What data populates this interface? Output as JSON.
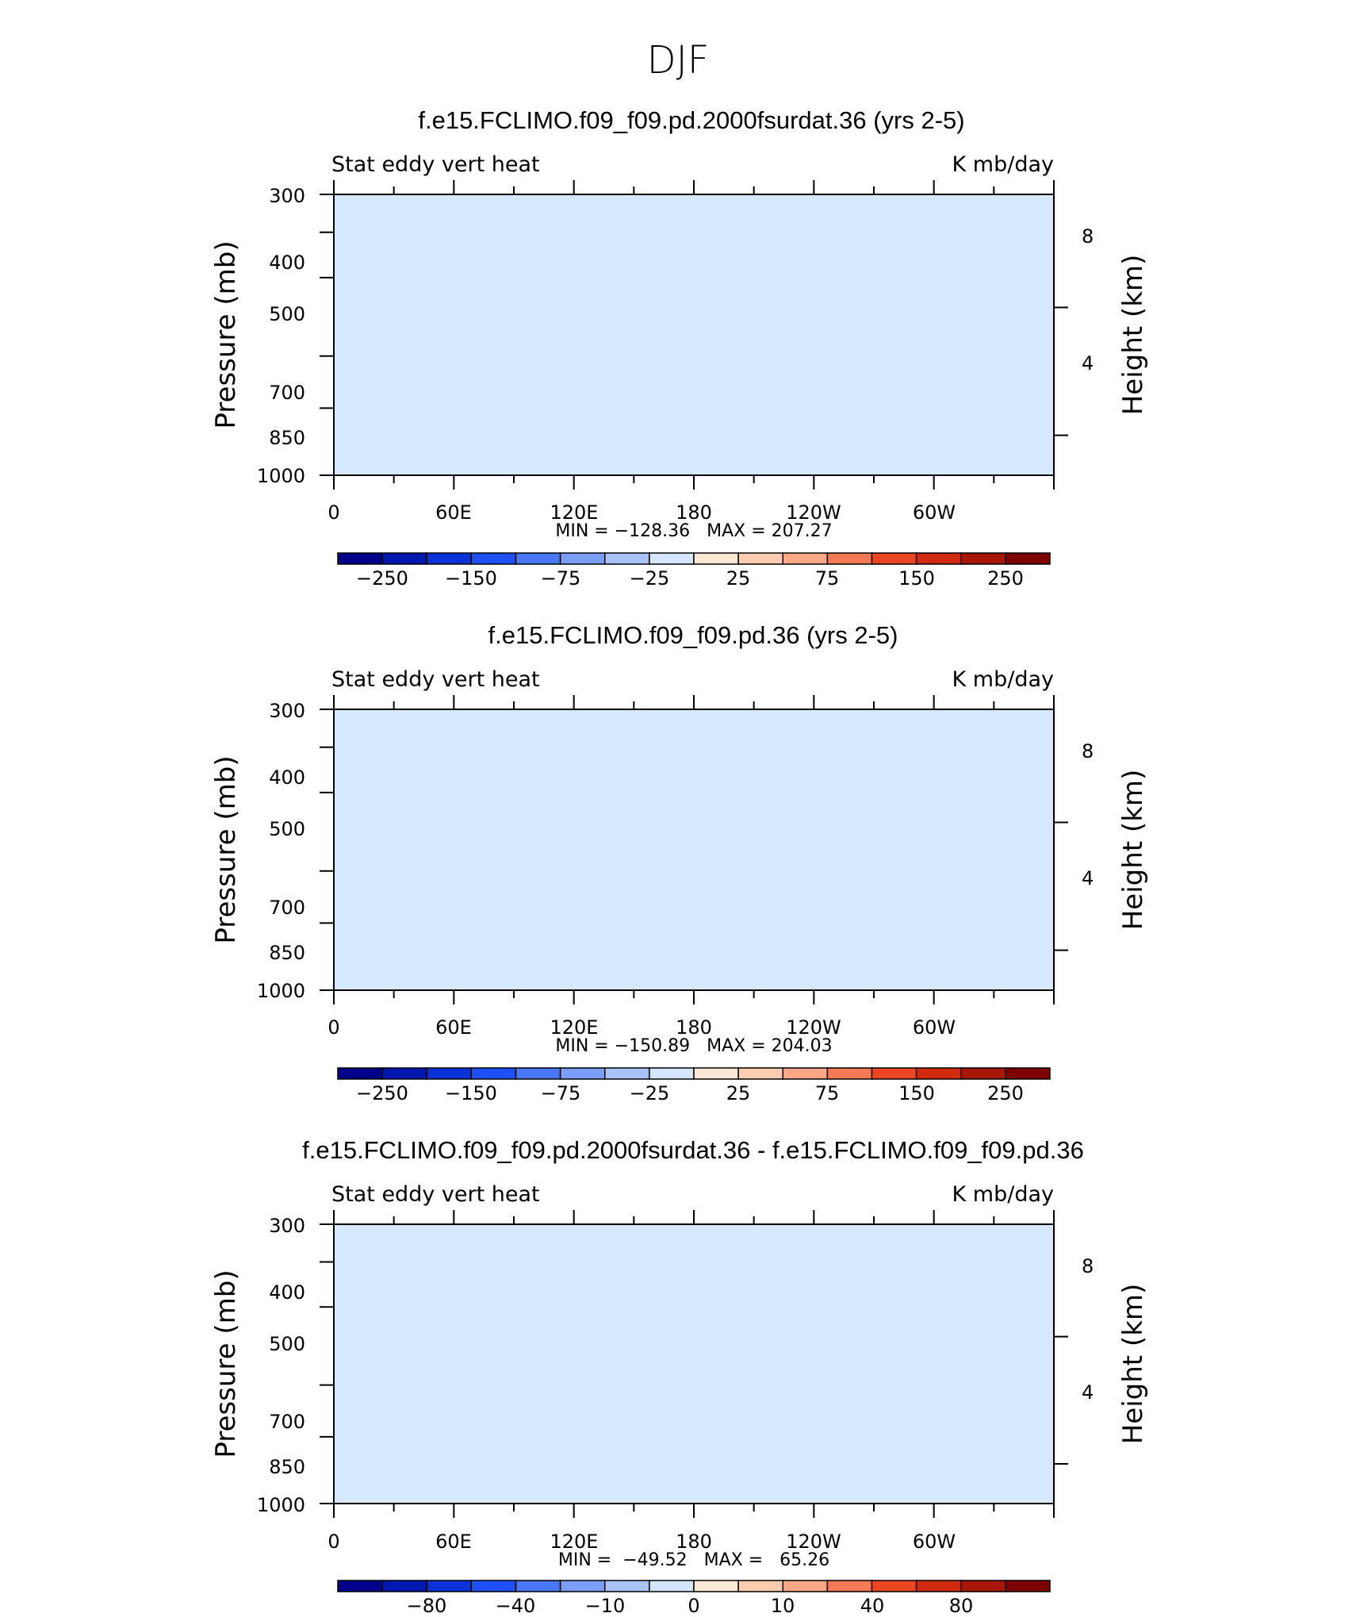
{
  "figure": {
    "title": "DJF"
  },
  "colors": {
    "abs": [
      "#00008b",
      "#0018b0",
      "#0a32d6",
      "#1e50ff",
      "#4a78f5",
      "#7a9ef7",
      "#a9c2fa",
      "#d3e6fd",
      "#fde8d5",
      "#fdcdb2",
      "#f9a886",
      "#f47a55",
      "#ea4722",
      "#d02a0f",
      "#a71708",
      "#7d0303"
    ],
    "diff": [
      "#00008b",
      "#0018b0",
      "#0a32d6",
      "#1e50ff",
      "#4a78f5",
      "#7a9ef7",
      "#a9c2fa",
      "#d3e6fd",
      "#fde8d5",
      "#fdcdb2",
      "#f9a886",
      "#f47a55",
      "#ea4722",
      "#d02a0f",
      "#a71708",
      "#7d0303"
    ],
    "topo": "#000000"
  },
  "chart_data": [
    {
      "type": "heatmap",
      "title": "f.e15.FCLIMO.f09_f09.pd.2000fsurdat.36 (yrs 2-5)",
      "left_label": "Stat eddy vert heat",
      "right_label": "K mb/day",
      "ylabel": "Pressure (mb)",
      "y2label": "Height (km)",
      "y_ticks": [
        "300",
        "400",
        "500",
        "700",
        "850",
        "1000"
      ],
      "y2_ticks": [
        "8",
        "4"
      ],
      "x_ticks": [
        "0",
        "60E",
        "120E",
        "180",
        "120W",
        "60W"
      ],
      "xlim": [
        0,
        360
      ],
      "ylim": [
        1000,
        300
      ],
      "stats": "MIN = −128.36   MAX = 207.27",
      "colorbar": {
        "labels": [
          "−250",
          "−150",
          "−75",
          "−25",
          "25",
          "75",
          "150",
          "250"
        ],
        "palette": "abs"
      }
    },
    {
      "type": "heatmap",
      "title": "f.e15.FCLIMO.f09_f09.pd.36 (yrs 2-5)",
      "left_label": "Stat eddy vert heat",
      "right_label": "K mb/day",
      "ylabel": "Pressure (mb)",
      "y2label": "Height (km)",
      "y_ticks": [
        "300",
        "400",
        "500",
        "700",
        "850",
        "1000"
      ],
      "y2_ticks": [
        "8",
        "4"
      ],
      "x_ticks": [
        "0",
        "60E",
        "120E",
        "180",
        "120W",
        "60W"
      ],
      "xlim": [
        0,
        360
      ],
      "ylim": [
        1000,
        300
      ],
      "stats": "MIN = −150.89   MAX = 204.03",
      "colorbar": {
        "labels": [
          "−250",
          "−150",
          "−75",
          "−25",
          "25",
          "75",
          "150",
          "250"
        ],
        "palette": "abs"
      }
    },
    {
      "type": "heatmap",
      "title": "f.e15.FCLIMO.f09_f09.pd.2000fsurdat.36 - f.e15.FCLIMO.f09_f09.pd.36",
      "left_label": "Stat eddy vert heat",
      "right_label": "K mb/day",
      "ylabel": "Pressure (mb)",
      "y2label": "Height (km)",
      "y_ticks": [
        "300",
        "400",
        "500",
        "700",
        "850",
        "1000"
      ],
      "y2_ticks": [
        "8",
        "4"
      ],
      "x_ticks": [
        "0",
        "60E",
        "120E",
        "180",
        "120W",
        "60W"
      ],
      "xlim": [
        0,
        360
      ],
      "ylim": [
        1000,
        300
      ],
      "stats": "MIN =  −49.52   MAX =   65.26",
      "colorbar": {
        "labels": [
          "−80",
          "−40",
          "−10",
          "0",
          "10",
          "40",
          "80"
        ],
        "palette": "diff"
      }
    }
  ]
}
